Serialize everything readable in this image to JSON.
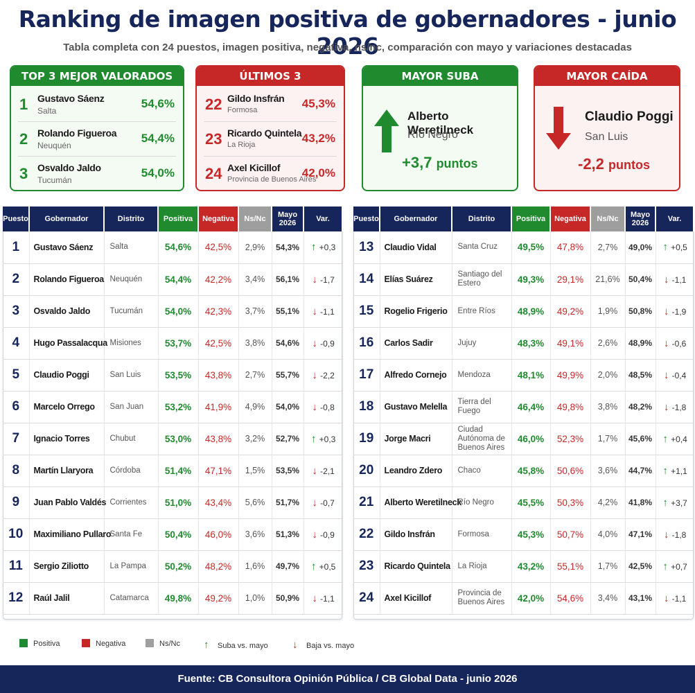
{
  "title": "Ranking de imagen positiva de gobernadores - junio 2026",
  "subtitle": "Tabla completa con 24 puestos, imagen positiva, negativa, ns/nc, comparación con mayo y variaciones destacadas",
  "colors": {
    "navy": "#16255a",
    "green": "#1f8a2e",
    "red": "#c62828",
    "gray": "#9e9e9e"
  },
  "top3": {
    "heading": "TOP 3 MEJOR VALORADOS",
    "rows": [
      {
        "rank": "1",
        "name": "Gustavo Sáenz",
        "district": "Salta",
        "value": "54,6%"
      },
      {
        "rank": "2",
        "name": "Rolando Figueroa",
        "district": "Neuquén",
        "value": "54,4%"
      },
      {
        "rank": "3",
        "name": "Osvaldo Jaldo",
        "district": "Tucumán",
        "value": "54,0%"
      }
    ]
  },
  "last3": {
    "heading": "ÚLTIMOS 3",
    "rows": [
      {
        "rank": "22",
        "name": "Gildo Insfrán",
        "district": "Formosa",
        "value": "45,3%"
      },
      {
        "rank": "23",
        "name": "Ricardo Quintela",
        "district": "La Rioja",
        "value": "43,2%"
      },
      {
        "rank": "24",
        "name": "Axel Kicillof",
        "district": "Provincia de Buenos Aires",
        "value": "42,0%"
      }
    ]
  },
  "rise": {
    "heading": "MAYOR SUBA",
    "name": "Alberto Weretilneck",
    "district": "Río Negro",
    "points": "+3,7",
    "unit": "puntos",
    "icon": "arrow-up-icon"
  },
  "fall": {
    "heading": "MAYOR CAÍDA",
    "name": "Claudio Poggi",
    "district": "San Luis",
    "points": "-2,2",
    "unit": "puntos",
    "icon": "arrow-down-icon"
  },
  "columns": {
    "puesto": "Puesto",
    "gobernador": "Gobernador",
    "distrito": "Distrito",
    "positiva": "Positiva",
    "negativa": "Negativa",
    "nsnc": "Ns/Nc",
    "mayo": "Mayo 2026",
    "var": "Var."
  },
  "rows": [
    {
      "rank": "1",
      "name": "Gustavo Sáenz",
      "district": "Salta",
      "pos": "54,6%",
      "neg": "42,5%",
      "nsnc": "2,9%",
      "may": "54,3%",
      "dir": "up",
      "var": "+0,3"
    },
    {
      "rank": "2",
      "name": "Rolando Figueroa",
      "district": "Neuquén",
      "pos": "54,4%",
      "neg": "42,2%",
      "nsnc": "3,4%",
      "may": "56,1%",
      "dir": "down",
      "var": "-1,7"
    },
    {
      "rank": "3",
      "name": "Osvaldo Jaldo",
      "district": "Tucumán",
      "pos": "54,0%",
      "neg": "42,3%",
      "nsnc": "3,7%",
      "may": "55,1%",
      "dir": "down",
      "var": "-1,1"
    },
    {
      "rank": "4",
      "name": "Hugo Passalacqua",
      "district": "Misiones",
      "pos": "53,7%",
      "neg": "42,5%",
      "nsnc": "3,8%",
      "may": "54,6%",
      "dir": "down",
      "var": "-0,9"
    },
    {
      "rank": "5",
      "name": "Claudio Poggi",
      "district": "San Luis",
      "pos": "53,5%",
      "neg": "43,8%",
      "nsnc": "2,7%",
      "may": "55,7%",
      "dir": "down",
      "var": "-2,2"
    },
    {
      "rank": "6",
      "name": "Marcelo Orrego",
      "district": "San Juan",
      "pos": "53,2%",
      "neg": "41,9%",
      "nsnc": "4,9%",
      "may": "54,0%",
      "dir": "down",
      "var": "-0,8"
    },
    {
      "rank": "7",
      "name": "Ignacio Torres",
      "district": "Chubut",
      "pos": "53,0%",
      "neg": "43,8%",
      "nsnc": "3,2%",
      "may": "52,7%",
      "dir": "up",
      "var": "+0,3"
    },
    {
      "rank": "8",
      "name": "Martín Llaryora",
      "district": "Córdoba",
      "pos": "51,4%",
      "neg": "47,1%",
      "nsnc": "1,5%",
      "may": "53,5%",
      "dir": "down",
      "var": "-2,1"
    },
    {
      "rank": "9",
      "name": "Juan Pablo Valdés",
      "district": "Corrientes",
      "pos": "51,0%",
      "neg": "43,4%",
      "nsnc": "5,6%",
      "may": "51,7%",
      "dir": "down",
      "var": "-0,7"
    },
    {
      "rank": "10",
      "name": "Maximiliano Pullaro",
      "district": "Santa Fe",
      "pos": "50,4%",
      "neg": "46,0%",
      "nsnc": "3,6%",
      "may": "51,3%",
      "dir": "down",
      "var": "-0,9"
    },
    {
      "rank": "11",
      "name": "Sergio Ziliotto",
      "district": "La Pampa",
      "pos": "50,2%",
      "neg": "48,2%",
      "nsnc": "1,6%",
      "may": "49,7%",
      "dir": "up",
      "var": "+0,5"
    },
    {
      "rank": "12",
      "name": "Raúl Jalil",
      "district": "Catamarca",
      "pos": "49,8%",
      "neg": "49,2%",
      "nsnc": "1,0%",
      "may": "50,9%",
      "dir": "down",
      "var": "-1,1"
    },
    {
      "rank": "13",
      "name": "Claudio Vidal",
      "district": "Santa Cruz",
      "pos": "49,5%",
      "neg": "47,8%",
      "nsnc": "2,7%",
      "may": "49,0%",
      "dir": "up",
      "var": "+0,5"
    },
    {
      "rank": "14",
      "name": "Elías Suárez",
      "district": "Santiago del Estero",
      "pos": "49,3%",
      "neg": "29,1%",
      "nsnc": "21,6%",
      "may": "50,4%",
      "dir": "down",
      "var": "-1,1"
    },
    {
      "rank": "15",
      "name": "Rogelio Frigerio",
      "district": "Entre Ríos",
      "pos": "48,9%",
      "neg": "49,2%",
      "nsnc": "1,9%",
      "may": "50,8%",
      "dir": "down",
      "var": "-1,9"
    },
    {
      "rank": "16",
      "name": "Carlos Sadir",
      "district": "Jujuy",
      "pos": "48,3%",
      "neg": "49,1%",
      "nsnc": "2,6%",
      "may": "48,9%",
      "dir": "down",
      "var": "-0,6"
    },
    {
      "rank": "17",
      "name": "Alfredo Cornejo",
      "district": "Mendoza",
      "pos": "48,1%",
      "neg": "49,9%",
      "nsnc": "2,0%",
      "may": "48,5%",
      "dir": "down",
      "var": "-0,4"
    },
    {
      "rank": "18",
      "name": "Gustavo Melella",
      "district": "Tierra del Fuego",
      "pos": "46,4%",
      "neg": "49,8%",
      "nsnc": "3,8%",
      "may": "48,2%",
      "dir": "down",
      "var": "-1,8"
    },
    {
      "rank": "19",
      "name": "Jorge Macri",
      "district": "Ciudad Autónoma de Buenos Aires",
      "pos": "46,0%",
      "neg": "52,3%",
      "nsnc": "1,7%",
      "may": "45,6%",
      "dir": "up",
      "var": "+0,4"
    },
    {
      "rank": "20",
      "name": "Leandro Zdero",
      "district": "Chaco",
      "pos": "45,8%",
      "neg": "50,6%",
      "nsnc": "3,6%",
      "may": "44,7%",
      "dir": "up",
      "var": "+1,1"
    },
    {
      "rank": "21",
      "name": "Alberto Weretilneck",
      "district": "Río Negro",
      "pos": "45,5%",
      "neg": "50,3%",
      "nsnc": "4,2%",
      "may": "41,8%",
      "dir": "up",
      "var": "+3,7"
    },
    {
      "rank": "22",
      "name": "Gildo Insfrán",
      "district": "Formosa",
      "pos": "45,3%",
      "neg": "50,7%",
      "nsnc": "4,0%",
      "may": "47,1%",
      "dir": "down",
      "var": "-1,8"
    },
    {
      "rank": "23",
      "name": "Ricardo Quintela",
      "district": "La Rioja",
      "pos": "43,2%",
      "neg": "55,1%",
      "nsnc": "1,7%",
      "may": "42,5%",
      "dir": "up",
      "var": "+0,7"
    },
    {
      "rank": "24",
      "name": "Axel Kicillof",
      "district": "Provincia de Buenos Aires",
      "pos": "42,0%",
      "neg": "54,6%",
      "nsnc": "3,4%",
      "may": "43,1%",
      "dir": "down",
      "var": "-1,1"
    }
  ],
  "legend": {
    "positiva": "Positiva",
    "negativa": "Negativa",
    "nsnc": "Ns/Nc",
    "suba": "Suba vs. mayo",
    "baja": "Baja vs. mayo"
  },
  "footer": "Fuente: CB Consultora Opinión Pública / CB Global Data - junio 2026"
}
